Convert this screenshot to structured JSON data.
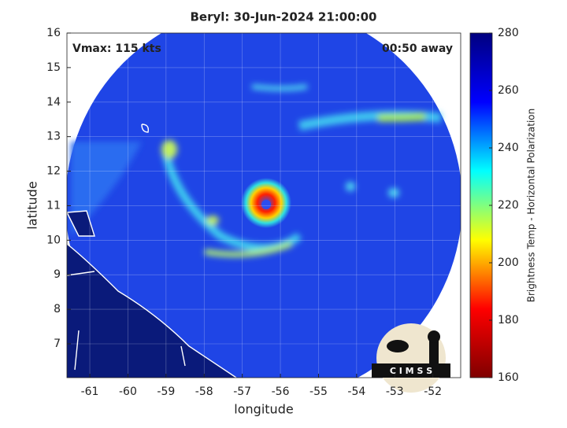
{
  "title": "Beryl: 30-Jun-2024 21:00:00",
  "annotations": {
    "vmax": "Vmax: 115 kts",
    "time_away": "00:50 away"
  },
  "x_label": "longitude",
  "y_label": "latitude",
  "xlim": [
    -61.6,
    -51.27
  ],
  "xticks": [
    -61,
    -60,
    -59,
    -58,
    -57,
    -56,
    -55,
    -54,
    -53,
    -52
  ],
  "ylim": [
    6.02,
    16
  ],
  "yticks": [
    7,
    8,
    9,
    10,
    11,
    12,
    13,
    14,
    15,
    16
  ],
  "grid": true,
  "colorbar": {
    "label": "Brightness Temp - Horizontal Polarization",
    "lim": [
      160,
      280
    ],
    "ticks": [
      160,
      180,
      200,
      220,
      240,
      260,
      280
    ],
    "colors": [
      "#7f0000",
      "#ff0000",
      "#ffff00",
      "#00ffff",
      "#0000ff",
      "#00007f"
    ]
  },
  "logo_text": "C I M S S"
}
